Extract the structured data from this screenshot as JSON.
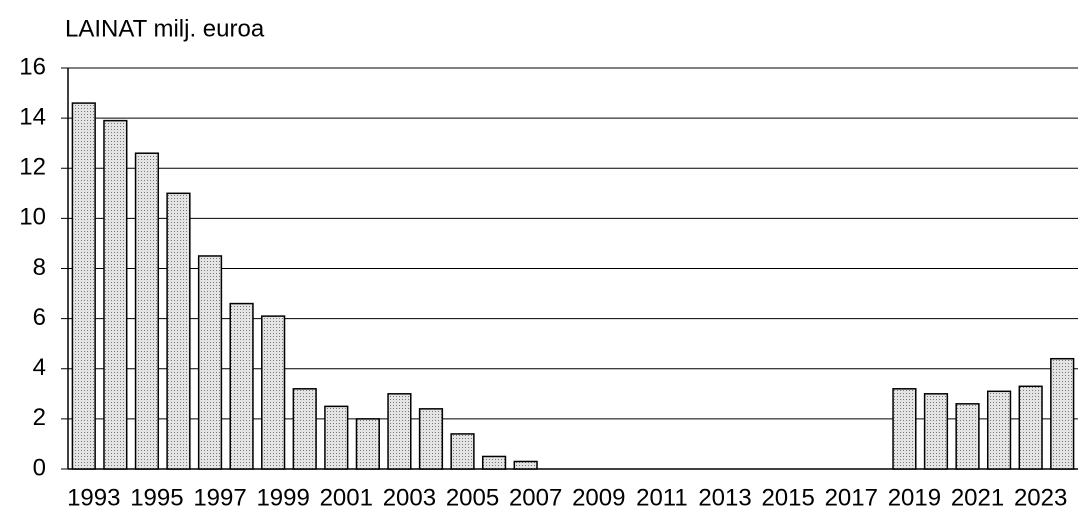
{
  "chart_data": {
    "type": "bar",
    "title": "LAINAT milj. euroa",
    "categories": [
      "1993",
      null,
      "1995",
      null,
      "1997",
      null,
      "1999",
      null,
      "2001",
      null,
      "2003",
      null,
      "2005",
      null,
      "2007",
      null,
      "2009",
      null,
      "2011",
      null,
      "2013",
      null,
      "2015",
      null,
      "2017",
      null,
      "2019",
      null,
      "2021",
      null,
      "2023",
      null
    ],
    "values": [
      14.6,
      13.9,
      12.6,
      11.0,
      8.5,
      6.6,
      6.1,
      3.2,
      2.5,
      2.0,
      3.0,
      2.4,
      1.4,
      0.5,
      0.3,
      0,
      0,
      0,
      0,
      0,
      0,
      0,
      0,
      0,
      0,
      0,
      3.2,
      3.0,
      2.6,
      3.1,
      3.3,
      4.4
    ],
    "color": "#d0d0d0",
    "ylim": [
      0,
      16
    ],
    "yticks": [
      0,
      2,
      4,
      6,
      8,
      10,
      12,
      14,
      16
    ],
    "grid": true
  }
}
